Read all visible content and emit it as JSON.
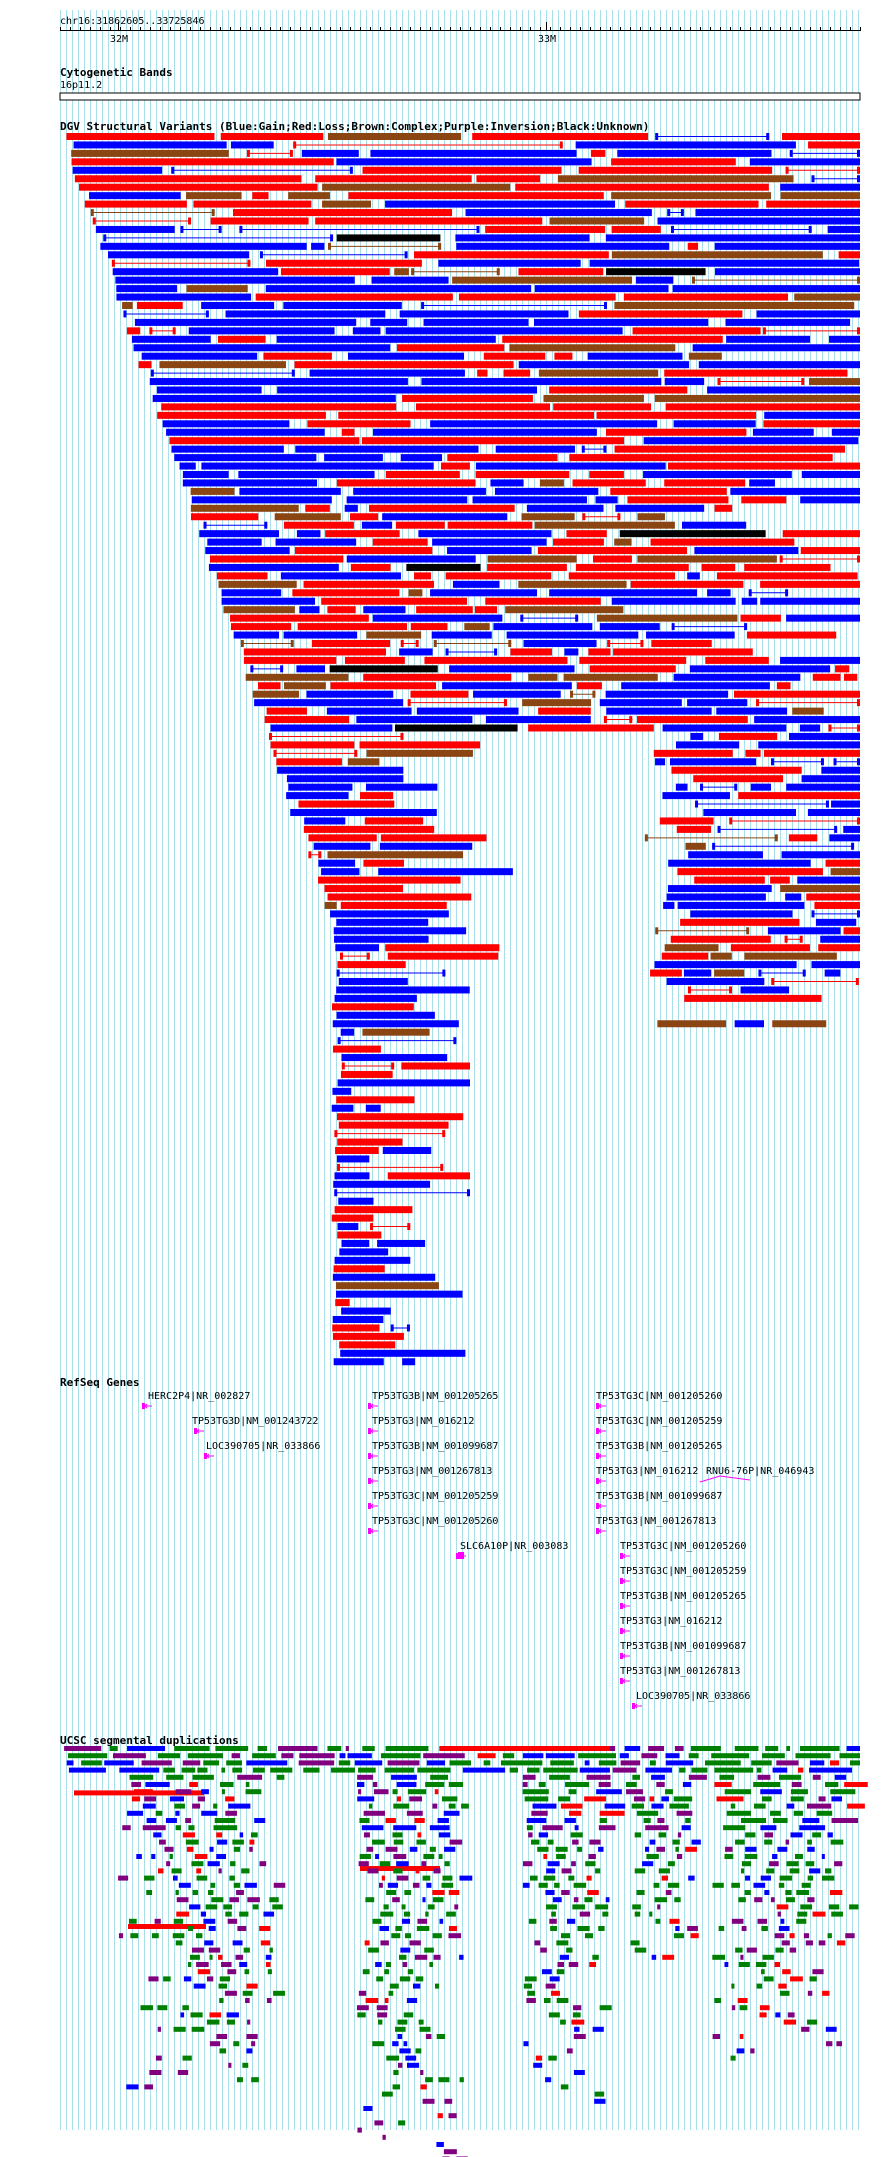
{
  "ruler": {
    "position": "chr16:31862605..33725846",
    "ticks": [
      "32M",
      "33M"
    ]
  },
  "tracks": {
    "cytoband": {
      "title": "Cytogenetic Bands",
      "band": "16p11.2"
    },
    "dgv": {
      "title": "DGV Structural Variants (Blue:Gain;Red:Loss;Brown:Complex;Purple:Inversion;Black:Unknown)"
    },
    "refseq": {
      "title": "RefSeq Genes",
      "genes": [
        "HERC2P4|NR_002827",
        "TP53TG3D|NM_001243722",
        "LOC390705|NR_033866",
        "TP53TG3B|NM_001205265",
        "TP53TG3|NM_016212",
        "TP53TG3B|NM_001099687",
        "TP53TG3|NM_001267813",
        "TP53TG3C|NM_001205259",
        "TP53TG3C|NM_001205260",
        "SLC6A10P|NR_003083",
        "TP53TG3C|NM_001205260",
        "TP53TG3C|NM_001205259",
        "TP53TG3B|NM_001205265",
        "TP53TG3|NM_016212",
        "RNU6-76P|NR_046943",
        "TP53TG3B|NM_001099687",
        "TP53TG3|NM_001267813",
        "TP53TG3C|NM_001205260",
        "TP53TG3C|NM_001205259",
        "TP53TG3B|NM_001205265",
        "TP53TG3|NM_016212",
        "TP53TG3B|NM_001099687",
        "TP53TG3|NM_001267813",
        "LOC390705|NR_033866"
      ]
    },
    "segdups": {
      "title": "UCSC segmental duplications"
    }
  },
  "legend_colors": {
    "gain": "#0000ff",
    "loss": "#ff0000",
    "complex": "#8b4513",
    "inversion": "#800080",
    "unknown": "#000000",
    "segdup_green": "#008000",
    "gene": "#ff00ff",
    "grid": "#a8dfe8"
  }
}
